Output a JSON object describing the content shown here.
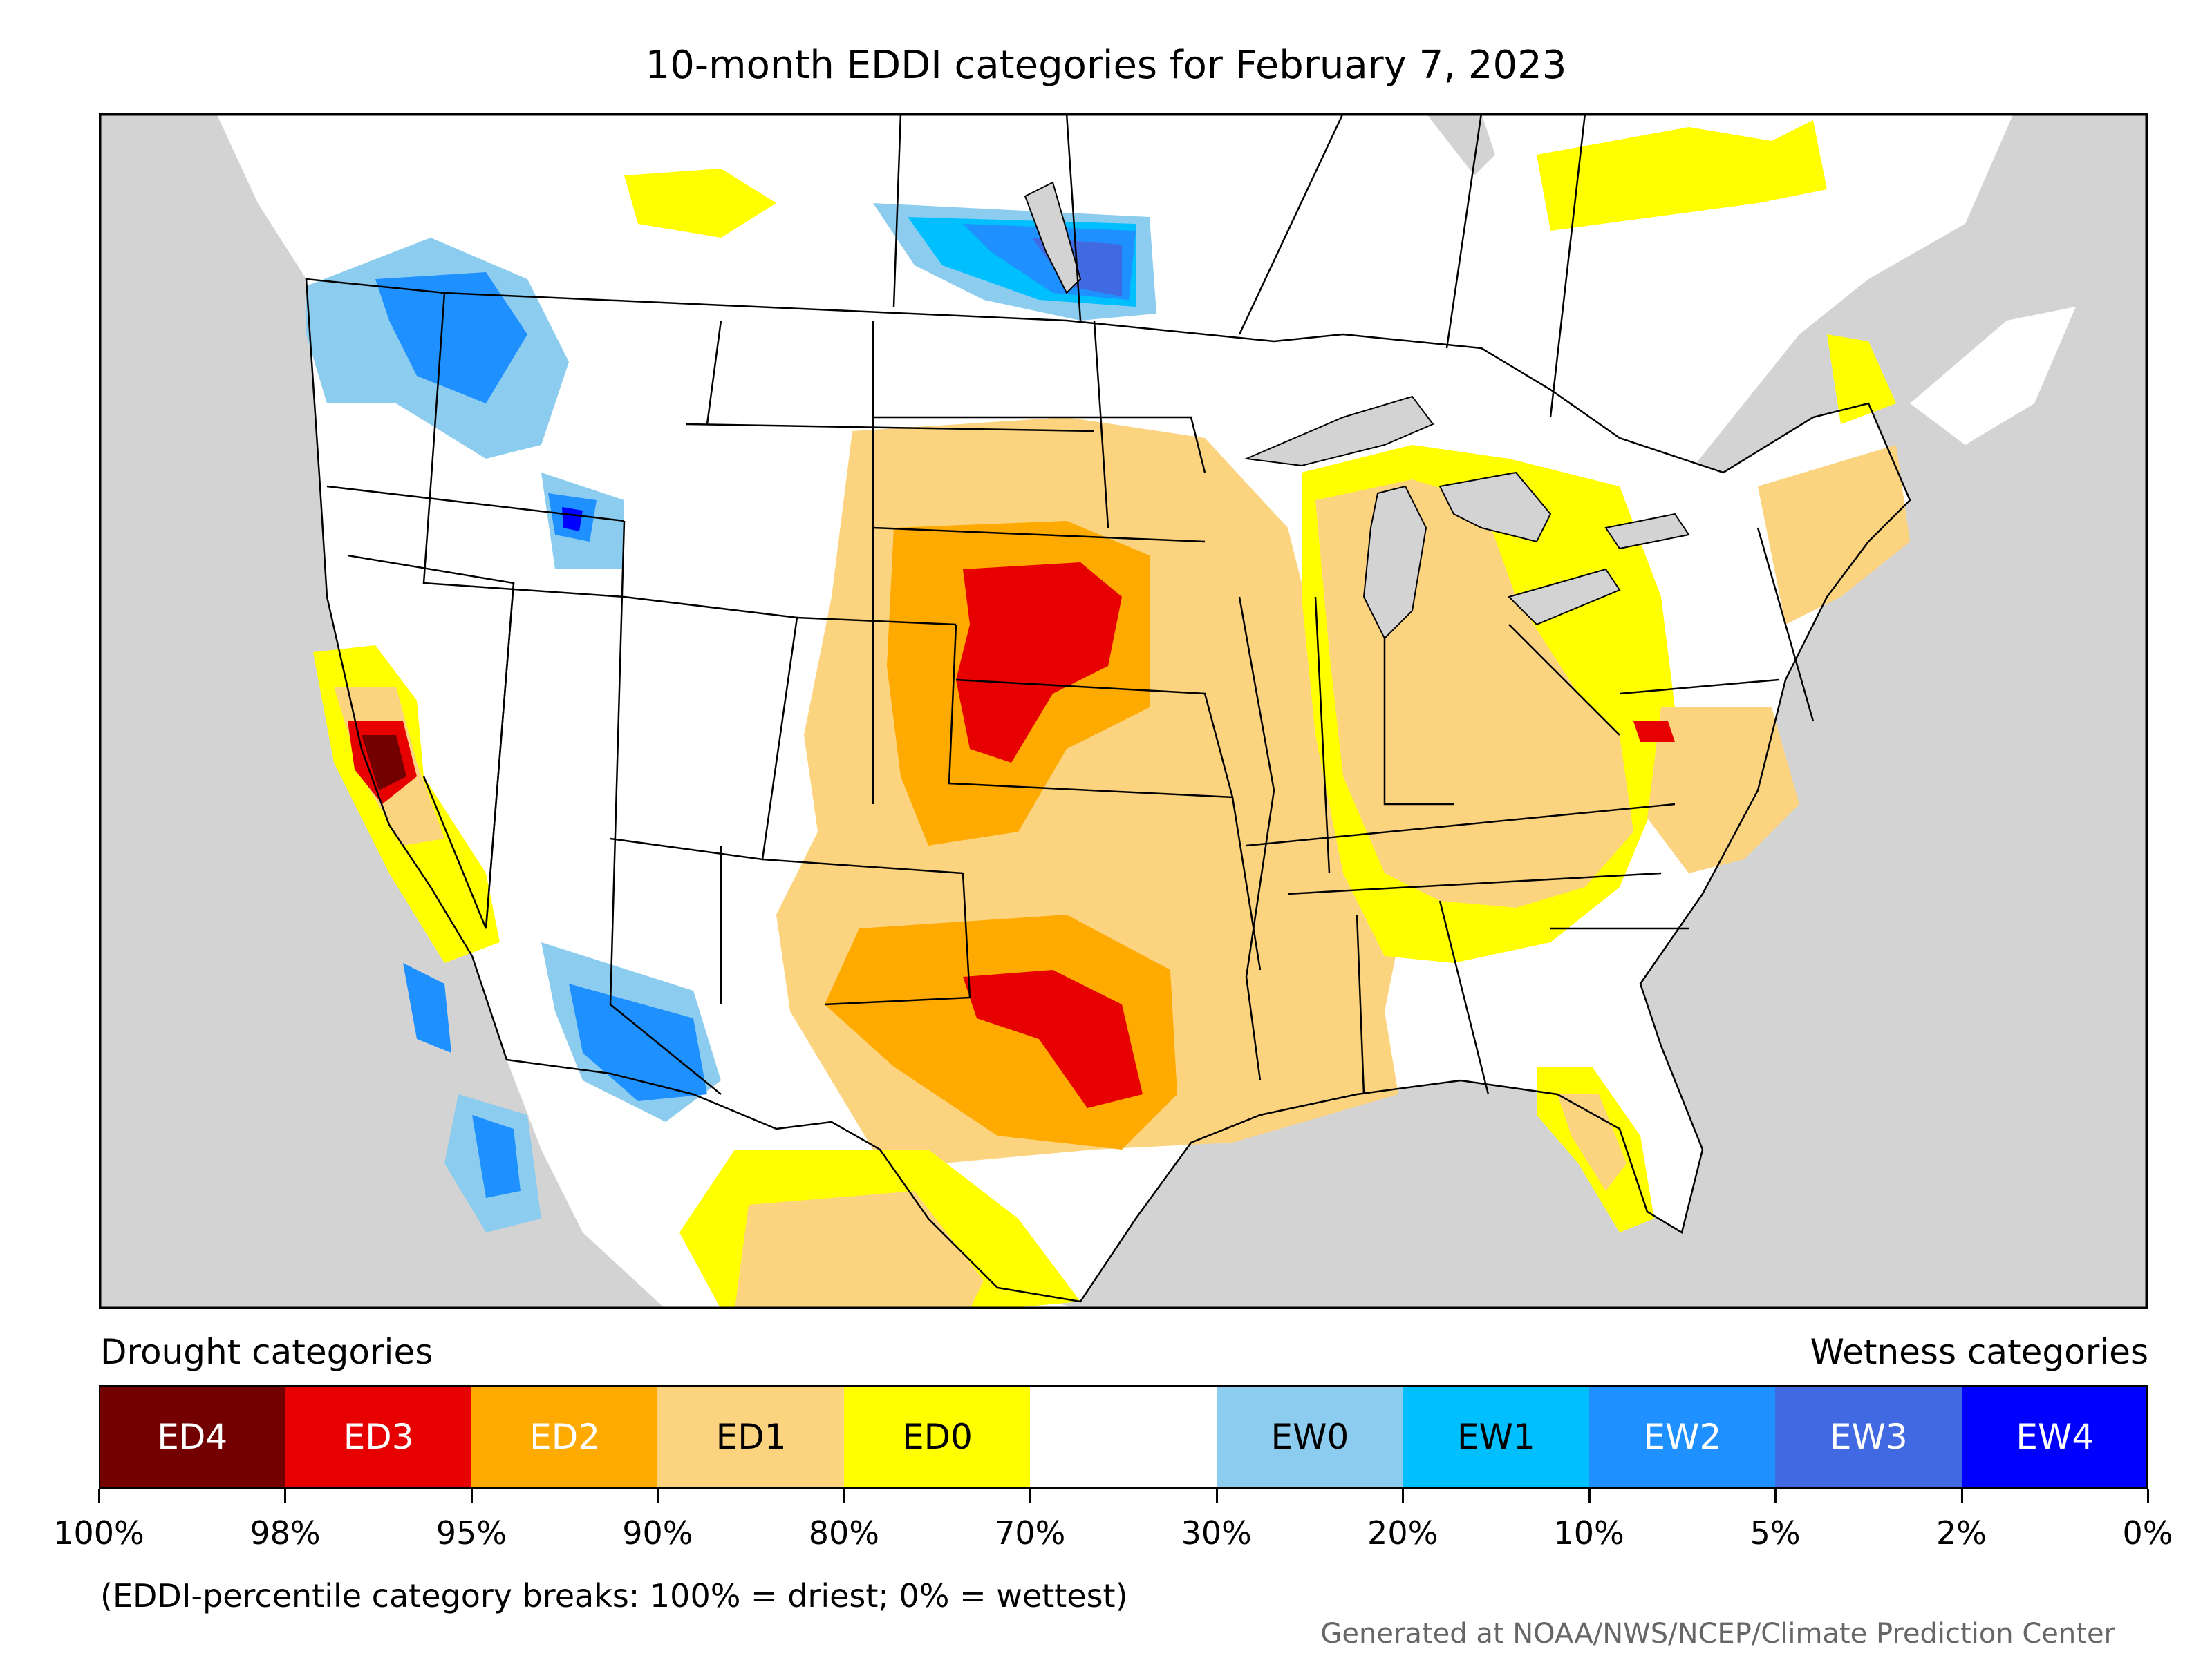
{
  "title": "10-month EDDI categories for February 7, 2023",
  "legend": {
    "drought_label": "Drought categories",
    "wetness_label": "Wetness categories",
    "categories": [
      {
        "label": "ED4",
        "color": "#730000",
        "text_color": "#ffffff"
      },
      {
        "label": "ED3",
        "color": "#e60000",
        "text_color": "#ffffff"
      },
      {
        "label": "ED2",
        "color": "#ffaa00",
        "text_color": "#ffffff"
      },
      {
        "label": "ED1",
        "color": "#fcd37f",
        "text_color": "#000000"
      },
      {
        "label": "ED0",
        "color": "#ffff00",
        "text_color": "#000000"
      },
      {
        "label": "",
        "color": "#ffffff",
        "text_color": "#000000"
      },
      {
        "label": "EW0",
        "color": "#8ccdef",
        "text_color": "#000000"
      },
      {
        "label": "EW1",
        "color": "#00bfff",
        "text_color": "#000000"
      },
      {
        "label": "EW2",
        "color": "#1e90ff",
        "text_color": "#ffffff"
      },
      {
        "label": "EW3",
        "color": "#4169e1",
        "text_color": "#ffffff"
      },
      {
        "label": "EW4",
        "color": "#0000ff",
        "text_color": "#ffffff"
      }
    ],
    "breaks": [
      "100%",
      "98%",
      "95%",
      "90%",
      "80%",
      "70%",
      "30%",
      "20%",
      "10%",
      "5%",
      "2%",
      "0%"
    ]
  },
  "note": "(EDDI-percentile category breaks: 100% = driest; 0% = wettest)",
  "credit": "Generated at NOAA/NWS/NCEP/Climate Prediction Center",
  "map": {
    "ocean_color": "#d3d3d3",
    "land_color": "#ffffff",
    "border_color": "#000000"
  }
}
